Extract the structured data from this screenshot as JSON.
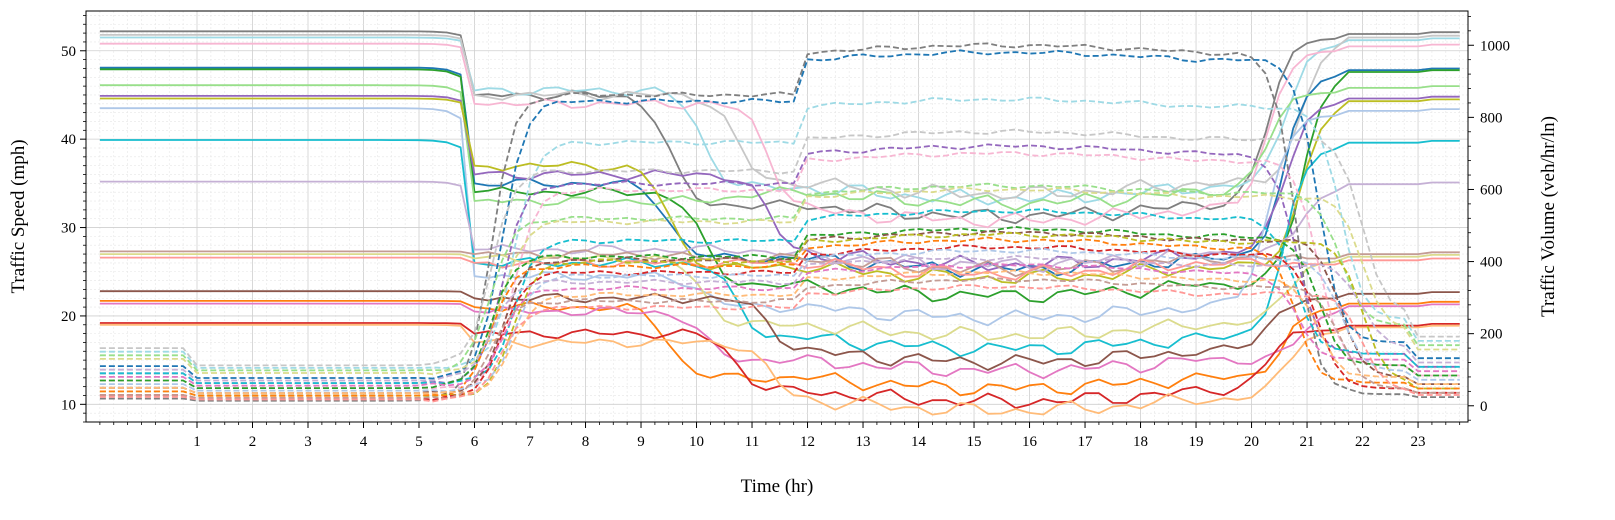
{
  "chart_data": {
    "type": "line",
    "xlabel": "Time (hr)",
    "ylabel": "Traffic Speed (mph)",
    "y2label": "Traffic Volume (veh/hr/ln)",
    "xlim": [
      -1,
      23.9
    ],
    "ylim": [
      8,
      54.5
    ],
    "y2lim": [
      -45,
      1095
    ],
    "xticks": [
      1,
      2,
      3,
      4,
      5,
      6,
      7,
      8,
      9,
      10,
      11,
      12,
      13,
      14,
      15,
      16,
      17,
      18,
      19,
      20,
      21,
      22,
      23
    ],
    "yticks": [
      10,
      20,
      30,
      40,
      50
    ],
    "y2ticks": [
      0,
      200,
      400,
      600,
      800,
      1000
    ],
    "grid": true,
    "legend": "none",
    "speed_series": [
      {
        "color": "#7f7f7f",
        "free": 52.2,
        "mid": 45.0,
        "noon": 32.5
      },
      {
        "color": "#9edae5",
        "free": 51.5,
        "mid": 45.5,
        "noon": 34.5
      },
      {
        "color": "#c7c7c7",
        "free": 51.8,
        "mid": 45.0,
        "noon": 35.0
      },
      {
        "color": "#f7b6d2",
        "free": 50.8,
        "mid": 44.0,
        "noon": 32.0
      },
      {
        "color": "#1f77b4",
        "free": 48.1,
        "mid": 35.0,
        "noon": 26.5
      },
      {
        "color": "#2ca02c",
        "free": 47.9,
        "mid": 34.0,
        "noon": 23.5
      },
      {
        "color": "#98df8a",
        "free": 46.1,
        "mid": 33.0,
        "noon": 34.0
      },
      {
        "color": "#9467bd",
        "free": 44.9,
        "mid": 36.0,
        "noon": 27.0
      },
      {
        "color": "#bcbd22",
        "free": 44.6,
        "mid": 37.0,
        "noon": 25.5
      },
      {
        "color": "#aec7e8",
        "free": 43.5,
        "mid": 24.5,
        "noon": 21.0
      },
      {
        "color": "#17becf",
        "free": 39.9,
        "mid": 26.0,
        "noon": 17.5
      },
      {
        "color": "#c5b0d5",
        "free": 35.2,
        "mid": 27.5,
        "noon": 27.0
      },
      {
        "color": "#c49c94",
        "free": 27.3,
        "mid": 27.0,
        "noon": 26.5
      },
      {
        "color": "#dbdb8d",
        "free": 27.0,
        "mid": 26.5,
        "noon": 19.0
      },
      {
        "color": "#ff9896",
        "free": 26.6,
        "mid": 26.0,
        "noon": 26.0
      },
      {
        "color": "#8c564b",
        "free": 22.8,
        "mid": 22.0,
        "noon": 16.0
      },
      {
        "color": "#ff7f0e",
        "free": 21.7,
        "mid": 21.0,
        "noon": 13.0
      },
      {
        "color": "#e377c2",
        "free": 21.4,
        "mid": 20.5,
        "noon": 15.0
      },
      {
        "color": "#d62728",
        "free": 19.2,
        "mid": 18.0,
        "noon": 11.5
      },
      {
        "color": "#ffbb78",
        "free": 19.0,
        "mid": 17.0,
        "noon": 10.5
      }
    ],
    "volume_series": [
      {
        "color": "#7f7f7f",
        "night": 20,
        "day": 980
      },
      {
        "color": "#1f77b4",
        "night": 110,
        "day": 960
      },
      {
        "color": "#9edae5",
        "night": 150,
        "day": 830
      },
      {
        "color": "#c7c7c7",
        "night": 160,
        "day": 740
      },
      {
        "color": "#9467bd",
        "night": 90,
        "day": 700
      },
      {
        "color": "#f7b6d2",
        "night": 70,
        "day": 680
      },
      {
        "color": "#98df8a",
        "night": 140,
        "day": 590
      },
      {
        "color": "#dbdb8d",
        "night": 130,
        "day": 580
      },
      {
        "color": "#17becf",
        "night": 90,
        "day": 520
      },
      {
        "color": "#2ca02c",
        "night": 70,
        "day": 470
      },
      {
        "color": "#8c564b",
        "night": 50,
        "day": 460
      },
      {
        "color": "#bcbd22",
        "night": 40,
        "day": 455
      },
      {
        "color": "#ff7f0e",
        "night": 40,
        "day": 440
      },
      {
        "color": "#d62728",
        "night": 30,
        "day": 420
      },
      {
        "color": "#aec7e8",
        "night": 60,
        "day": 410
      },
      {
        "color": "#c5b0d5",
        "night": 100,
        "day": 390
      },
      {
        "color": "#e377c2",
        "night": 80,
        "day": 370
      },
      {
        "color": "#ffbb78",
        "night": 50,
        "day": 350
      },
      {
        "color": "#c49c94",
        "night": 30,
        "day": 330
      },
      {
        "color": "#ff9896",
        "night": 25,
        "day": 310
      }
    ]
  }
}
